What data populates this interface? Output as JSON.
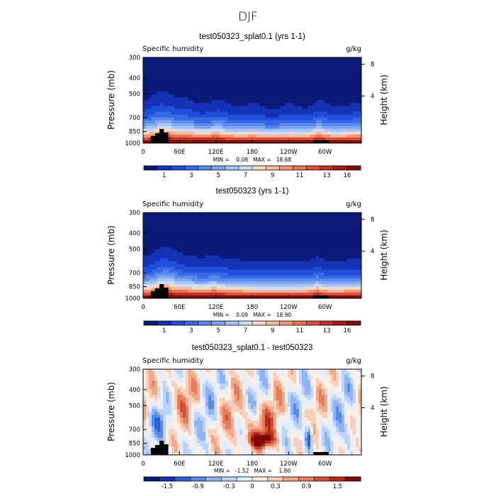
{
  "main_title": "DJF",
  "chart_data": [
    {
      "type": "heatmap",
      "title": "test050323_splat0.1 (yrs 1-1)",
      "variable": "Specific humidity",
      "units": "g/kg",
      "ylabel_left": "Pressure (mb)",
      "ylabel_right": "Height (km)",
      "x_ticks": [
        "0",
        "60E",
        "120E",
        "180",
        "120W",
        "60W"
      ],
      "y_ticks": [
        "300",
        "400",
        "500",
        "700",
        "850",
        "1000"
      ],
      "y_right_ticks": [
        "8",
        "4"
      ],
      "stats": "MIN =    0.08   MAX =   18.68",
      "min": 0.08,
      "max": 18.68,
      "colorbar_labels": [
        "1",
        "3",
        "5",
        "7",
        "9",
        "11",
        "13",
        "16"
      ],
      "colorbar_colors": [
        "#0b1a78",
        "#1531b6",
        "#1f4fd8",
        "#3569e6",
        "#5a89ee",
        "#7ea6f2",
        "#a6c4f6",
        "#cbdcf8",
        "#f6d8c9",
        "#f6b89c",
        "#f19674",
        "#e87353",
        "#d9513a",
        "#c23327",
        "#a51c18",
        "#7f0b0b"
      ],
      "field": "humidity_splat"
    },
    {
      "type": "heatmap",
      "title": "test050323 (yrs 1-1)",
      "variable": "Specific humidity",
      "units": "g/kg",
      "ylabel_left": "Pressure (mb)",
      "ylabel_right": "Height (km)",
      "x_ticks": [
        "0",
        "60E",
        "120E",
        "180",
        "120W",
        "60W"
      ],
      "y_ticks": [
        "300",
        "400",
        "500",
        "700",
        "850",
        "1000"
      ],
      "y_right_ticks": [
        "8",
        "4"
      ],
      "stats": "MIN =    0.09   MAX =   18.90",
      "min": 0.09,
      "max": 18.9,
      "colorbar_labels": [
        "1",
        "3",
        "5",
        "7",
        "9",
        "11",
        "13",
        "16"
      ],
      "colorbar_colors": [
        "#0b1a78",
        "#1531b6",
        "#1f4fd8",
        "#3569e6",
        "#5a89ee",
        "#7ea6f2",
        "#a6c4f6",
        "#cbdcf8",
        "#f6d8c9",
        "#f6b89c",
        "#f19674",
        "#e87353",
        "#d9513a",
        "#c23327",
        "#a51c18",
        "#7f0b0b"
      ],
      "field": "humidity_control"
    },
    {
      "type": "heatmap",
      "title": "test050323_splat0.1 - test050323",
      "variable": "Specific humidity",
      "units": "g/kg",
      "ylabel_left": "Pressure (mb)",
      "ylabel_right": "Height (km)",
      "x_ticks": [
        "0",
        "60E",
        "120E",
        "180",
        "120W",
        "60W"
      ],
      "y_ticks": [
        "300",
        "400",
        "500",
        "700",
        "850",
        "1000"
      ],
      "y_right_ticks": [
        "8",
        "4"
      ],
      "stats": "MIN =   -1.52   MAX =    1.80",
      "min": -1.52,
      "max": 1.8,
      "colorbar_labels": [
        "-1.5",
        "-0.9",
        "-0.3",
        "0",
        "0.3",
        "0.9",
        "1.5"
      ],
      "colorbar_colors": [
        "#0b1a78",
        "#1531b6",
        "#2a5fdc",
        "#5a89ee",
        "#8fb3f3",
        "#bcd2f7",
        "#e4edfb",
        "#fbeee6",
        "#f6d0bd",
        "#f0a888",
        "#e57c5c",
        "#d24e37",
        "#b42a20",
        "#7f0b0b"
      ],
      "field": "humidity_diff"
    }
  ]
}
